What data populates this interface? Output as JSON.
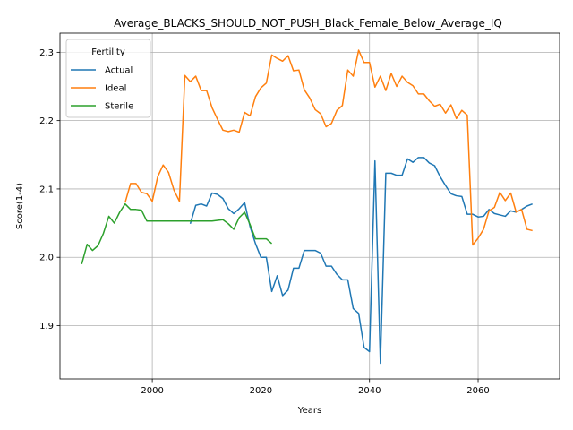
{
  "chart_data": {
    "type": "line",
    "title": "Average_BLACKS_SHOULD_NOT_PUSH_Black_Female_Below_Average_IQ",
    "xlabel": "Years",
    "ylabel": "Score(1-4)",
    "xlim": [
      1983,
      2075
    ],
    "ylim": [
      1.822,
      2.328
    ],
    "xticks": [
      2000,
      2020,
      2040,
      2060
    ],
    "yticks": [
      1.9,
      2.0,
      2.1,
      2.2,
      2.3
    ],
    "ytick_labels": [
      "1.9",
      "2.0",
      "2.1",
      "2.2",
      "2.3"
    ],
    "grid": true,
    "legend": {
      "title": "Fertility",
      "placement": "top-left"
    },
    "series": [
      {
        "name": "Actual",
        "color": "#1f77b4",
        "x": [
          2007,
          2008,
          2009,
          2010,
          2011,
          2012,
          2013,
          2014,
          2015,
          2016,
          2017,
          2018,
          2019,
          2020,
          2021,
          2022,
          2023,
          2024,
          2025,
          2026,
          2027,
          2028,
          2029,
          2030,
          2031,
          2032,
          2033,
          2034,
          2035,
          2036,
          2037,
          2038,
          2039,
          2040,
          2041,
          2042,
          2043,
          2044,
          2045,
          2046,
          2047,
          2048,
          2049,
          2050,
          2051,
          2052,
          2053,
          2054,
          2055,
          2056,
          2057,
          2058,
          2059,
          2060,
          2061,
          2062,
          2063,
          2064,
          2065,
          2066,
          2067,
          2068,
          2069,
          2070
        ],
        "y": [
          2.049,
          2.076,
          2.078,
          2.075,
          2.094,
          2.092,
          2.086,
          2.071,
          2.064,
          2.071,
          2.08,
          2.045,
          2.02,
          2.0,
          2.0,
          1.95,
          1.973,
          1.944,
          1.952,
          1.984,
          1.984,
          2.01,
          2.01,
          2.01,
          2.006,
          1.987,
          1.987,
          1.975,
          1.967,
          1.967,
          1.925,
          1.918,
          1.868,
          1.862,
          2.141,
          1.845,
          2.123,
          2.123,
          2.12,
          2.12,
          2.144,
          2.139,
          2.146,
          2.146,
          2.138,
          2.134,
          2.118,
          2.105,
          2.093,
          2.09,
          2.089,
          2.063,
          2.063,
          2.059,
          2.06,
          2.07,
          2.064,
          2.062,
          2.06,
          2.068,
          2.066,
          2.07,
          2.075,
          2.078
        ]
      },
      {
        "name": "Ideal",
        "color": "#ff7f0e",
        "x": [
          1995,
          1996,
          1997,
          1998,
          1999,
          2000,
          2001,
          2002,
          2003,
          2004,
          2005,
          2006,
          2007,
          2008,
          2009,
          2010,
          2011,
          2012,
          2013,
          2014,
          2015,
          2016,
          2017,
          2018,
          2019,
          2020,
          2021,
          2022,
          2023,
          2024,
          2025,
          2026,
          2027,
          2028,
          2029,
          2030,
          2031,
          2032,
          2033,
          2034,
          2035,
          2036,
          2037,
          2038,
          2039,
          2040,
          2041,
          2042,
          2043,
          2044,
          2045,
          2046,
          2047,
          2048,
          2049,
          2050,
          2051,
          2052,
          2053,
          2054,
          2055,
          2056,
          2057,
          2058,
          2059,
          2060,
          2061,
          2062,
          2063,
          2064,
          2065,
          2066,
          2067,
          2068,
          2069,
          2070
        ],
        "y": [
          2.08,
          2.108,
          2.108,
          2.095,
          2.093,
          2.082,
          2.118,
          2.135,
          2.124,
          2.098,
          2.082,
          2.266,
          2.257,
          2.265,
          2.244,
          2.244,
          2.219,
          2.202,
          2.186,
          2.184,
          2.186,
          2.183,
          2.212,
          2.207,
          2.235,
          2.248,
          2.255,
          2.296,
          2.291,
          2.287,
          2.295,
          2.273,
          2.274,
          2.245,
          2.233,
          2.216,
          2.21,
          2.191,
          2.196,
          2.215,
          2.222,
          2.274,
          2.265,
          2.303,
          2.285,
          2.285,
          2.249,
          2.265,
          2.244,
          2.269,
          2.25,
          2.265,
          2.256,
          2.251,
          2.239,
          2.239,
          2.229,
          2.221,
          2.224,
          2.211,
          2.223,
          2.203,
          2.215,
          2.208,
          2.018,
          2.028,
          2.041,
          2.068,
          2.073,
          2.095,
          2.083,
          2.094,
          2.066,
          2.07,
          2.041,
          2.039
        ]
      },
      {
        "name": "Sterile",
        "color": "#2ca02c",
        "x": [
          1987,
          1988,
          1989,
          1990,
          1991,
          1992,
          1993,
          1994,
          1995,
          1996,
          1997,
          1998,
          1999,
          2000,
          2001,
          2002,
          2003,
          2004,
          2005,
          2006,
          2007,
          2008,
          2009,
          2010,
          2011,
          2012,
          2013,
          2014,
          2015,
          2016,
          2017,
          2018,
          2019,
          2020,
          2021,
          2022
        ],
        "y": [
          1.99,
          2.019,
          2.01,
          2.017,
          2.035,
          2.06,
          2.05,
          2.066,
          2.078,
          2.07,
          2.07,
          2.069,
          2.053,
          2.053,
          2.053,
          2.053,
          2.053,
          2.053,
          2.053,
          2.053,
          2.053,
          2.053,
          2.053,
          2.053,
          2.053,
          2.054,
          2.055,
          2.049,
          2.041,
          2.058,
          2.066,
          2.048,
          2.027,
          2.027,
          2.027,
          2.02
        ]
      }
    ]
  }
}
